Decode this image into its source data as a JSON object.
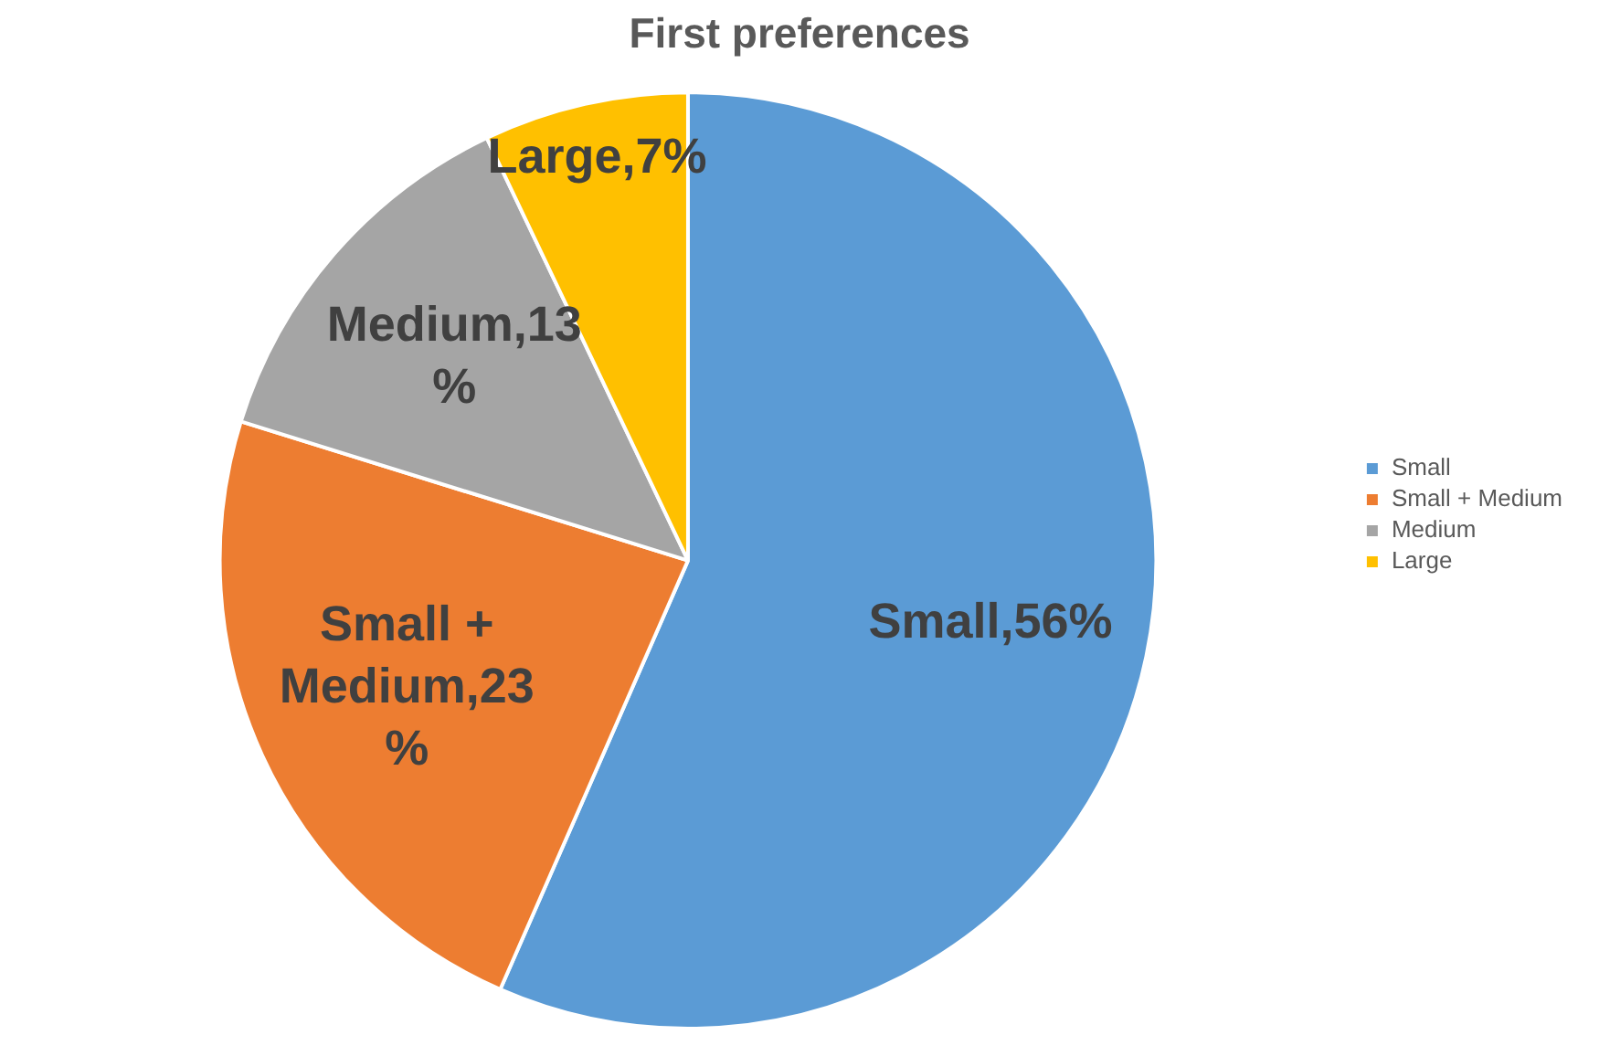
{
  "chart_data": {
    "type": "pie",
    "title": "First preferences",
    "categories": [
      "Small",
      "Small + Medium",
      "Medium",
      "Large"
    ],
    "values": [
      56,
      23,
      13,
      7
    ],
    "colors": [
      "#5b9bd5",
      "#ed7d31",
      "#a5a5a5",
      "#ffc000"
    ],
    "value_labels": [
      "Small,56%",
      "Small + Medium,23%",
      "Medium,13%",
      "Large,7%"
    ],
    "legend": "right"
  }
}
